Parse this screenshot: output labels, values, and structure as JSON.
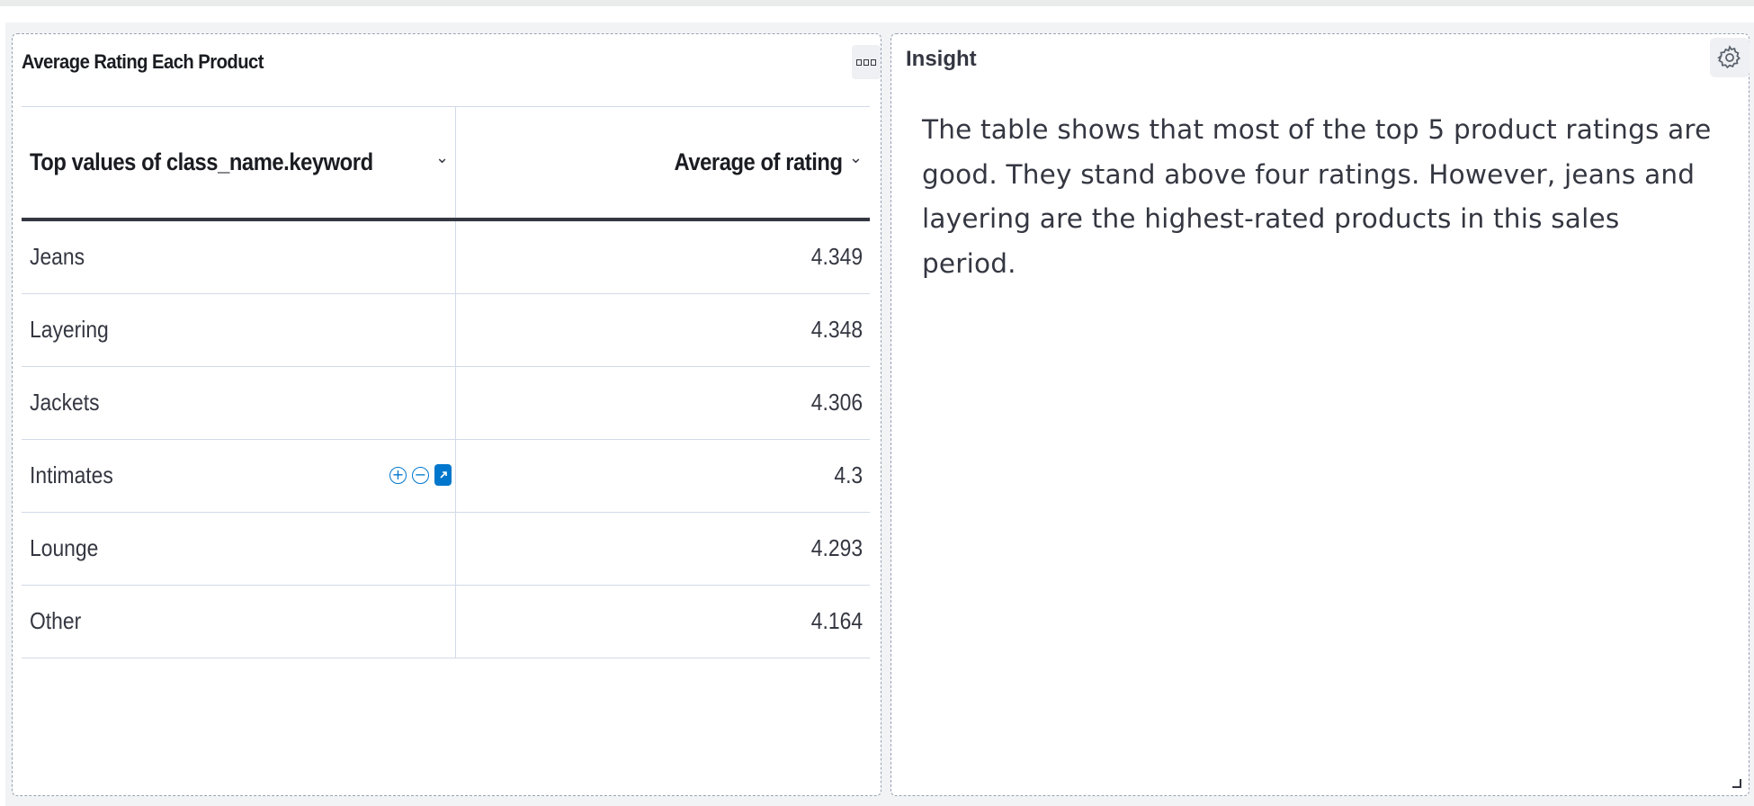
{
  "table_panel": {
    "title": "Average Rating Each Product",
    "columns": {
      "left": "Top values of class_name.keyword",
      "right": "Average of rating"
    },
    "rows": [
      {
        "name": "Jeans",
        "value": "4.349"
      },
      {
        "name": "Layering",
        "value": "4.348"
      },
      {
        "name": "Jackets",
        "value": "4.306"
      },
      {
        "name": "Intimates",
        "value": "4.3"
      },
      {
        "name": "Lounge",
        "value": "4.293"
      },
      {
        "name": "Other",
        "value": "4.164"
      }
    ],
    "hovered_row": 3
  },
  "insight_panel": {
    "title": "Insight",
    "text": "The table shows that most of the top 5 product ratings are good. They stand above four ratings. However, jeans and layering are the highest-rated products in this sales period."
  },
  "colors": {
    "accent": "#0077cc",
    "text": "#343741",
    "border": "#d3dae6"
  },
  "icons": [
    "panel-menu-icon",
    "chevron-down-icon",
    "filter-in-icon",
    "filter-out-icon",
    "expand-cell-icon",
    "gear-icon",
    "resize-handle-icon"
  ]
}
